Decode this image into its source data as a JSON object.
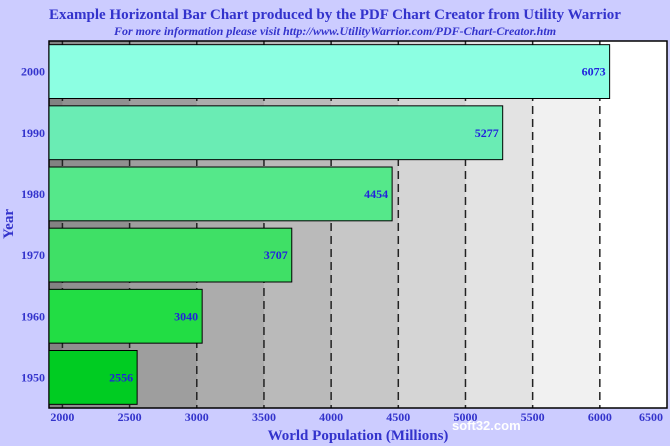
{
  "chart_data": {
    "type": "bar",
    "orientation": "horizontal",
    "title": "Example Horizontal Bar Chart produced by the PDF Chart Creator from Utility Warrior",
    "subtitle": "For more information please visit http://www.UtilityWarrior.com/PDF-Chart-Creator.htm",
    "xlabel": "World Population (Millions)",
    "ylabel": "Year",
    "categories": [
      "1950",
      "1960",
      "1970",
      "1980",
      "1990",
      "2000"
    ],
    "values": [
      2556,
      3040,
      3707,
      4454,
      5277,
      6073
    ],
    "data_labels": [
      "2556",
      "3040",
      "3707",
      "4454",
      "5277",
      "6073"
    ],
    "xlim": [
      1900,
      6500
    ],
    "xticks": [
      "2000",
      "2500",
      "3000",
      "3500",
      "4000",
      "4500",
      "5000",
      "5500",
      "6000",
      "6500"
    ],
    "grid": "vertical dashed",
    "bar_colors": [
      "#00cc22",
      "#22dd44",
      "#3fe066",
      "#55e88a",
      "#6aecb4",
      "#8cffe2"
    ]
  },
  "watermark": "soft32.com"
}
